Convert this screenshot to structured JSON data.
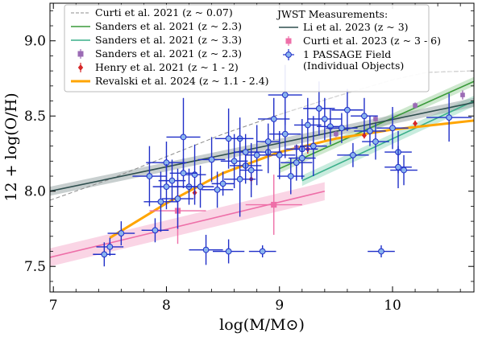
{
  "chart_data": {
    "type": "scatter",
    "xlabel": "log(M/M⊙)",
    "ylabel": "12 + log(O/H)",
    "xlim": [
      6.97,
      10.72
    ],
    "ylim": [
      7.33,
      9.25
    ],
    "xticks": [
      7,
      8,
      9,
      10
    ],
    "yticks": [
      7.5,
      8.0,
      8.5,
      9.0
    ],
    "grid": false,
    "legend_placement": "top",
    "legend_header": "JWST Measurements:",
    "colors": {
      "curti2021": "#8c8c8c",
      "sanders_z23": "#3a9a3a",
      "sanders_z33": "#3aaf8a",
      "sanders_sq": "#9b6bb5",
      "henry": "#d62728",
      "revalski": "#ffa500",
      "li": "#2f4f4f",
      "curti2023": "#ee6fa8",
      "passage": "#1f2ec8",
      "passage_fill": "#8ab4ee"
    },
    "series": [
      {
        "name": "Curti et al. 2021 (z ~ 0.07)",
        "kind": "line",
        "style": "dashed",
        "x": [
          6.97,
          7.5,
          8.0,
          8.5,
          9.0,
          9.5,
          10.0,
          10.3,
          10.72
        ],
        "y": [
          7.94,
          8.08,
          8.23,
          8.38,
          8.51,
          8.63,
          8.74,
          8.79,
          8.8
        ]
      },
      {
        "name": "Curti et al. 2021 (z ~ 0.07)",
        "kind": "line",
        "style": "faint",
        "x": [
          9.0,
          9.5,
          10.0,
          10.3,
          10.72
        ],
        "y": [
          8.51,
          8.63,
          8.74,
          8.79,
          8.8
        ]
      },
      {
        "name": "Sanders et al. 2021 (z ~ 2.3)",
        "kind": "band",
        "x": [
          9.0,
          10.72
        ],
        "y": [
          8.15,
          8.73
        ],
        "halfwidth": 0.03
      },
      {
        "name": "Sanders et al. 2021 (z ~ 3.3)",
        "kind": "band",
        "x": [
          9.2,
          10.72
        ],
        "y": [
          8.07,
          8.6
        ],
        "halfwidth": 0.035
      },
      {
        "name": "Sanders et al. 2021 (z ~ 2.3)",
        "kind": "errpoints",
        "marker": "square",
        "x": [
          9.15,
          9.5,
          9.85,
          10.2,
          10.62
        ],
        "y": [
          8.29,
          8.38,
          8.48,
          8.57,
          8.64
        ],
        "yerr": [
          0.02,
          0.02,
          0.02,
          0.02,
          0.03
        ]
      },
      {
        "name": "Henry et al. 2021 (z ~ 1-2)",
        "kind": "errpoints",
        "marker": "diamond",
        "x": [
          8.25,
          8.75,
          9.25,
          9.75,
          10.2
        ],
        "y": [
          7.99,
          8.08,
          8.28,
          8.37,
          8.45
        ],
        "yerr": [
          0.04,
          0.04,
          0.03,
          0.02,
          0.02
        ]
      },
      {
        "name": "Revalski et al. 2024 (z ~ 1.1-2.4)",
        "kind": "line",
        "x": [
          7.5,
          8.0,
          8.5,
          9.0,
          9.5,
          10.0,
          10.72
        ],
        "y": [
          7.69,
          7.92,
          8.12,
          8.26,
          8.35,
          8.41,
          8.47
        ]
      },
      {
        "name": "Li et al. 2023 (z ~ 3)",
        "kind": "band",
        "x": [
          6.97,
          10.72
        ],
        "y": [
          8.0,
          8.59
        ],
        "halfwidth": 0.03
      },
      {
        "name": "Curti et al. 2023 (z ~ 3-6)",
        "kind": "band",
        "x": [
          6.97,
          9.4
        ],
        "y": [
          7.56,
          8.0
        ],
        "halfwidth": 0.06
      },
      {
        "name": "Curti et al. 2023 (z ~ 3-6)",
        "kind": "errpoints",
        "marker": "square",
        "x": [
          8.1,
          8.95
        ],
        "y": [
          7.87,
          7.91
        ],
        "xerr": [
          0.25,
          0.25
        ],
        "yerr": [
          0.22,
          0.2
        ]
      },
      {
        "name": "1 PASSAGE Field (Individual Objects)",
        "kind": "errpoints",
        "marker": "circle",
        "x": [
          7.45,
          7.5,
          7.6,
          7.85,
          7.95,
          8.0,
          8.05,
          8.1,
          8.15,
          8.2,
          8.25,
          8.35,
          8.45,
          8.55,
          8.6,
          8.65,
          8.7,
          8.75,
          8.8,
          8.85,
          8.9,
          8.95,
          9.0,
          9.05,
          9.1,
          9.15,
          9.2,
          9.25,
          9.3,
          9.35,
          9.45,
          9.55,
          9.65,
          9.75,
          9.8,
          9.9,
          10.0,
          10.05,
          10.1,
          10.5,
          7.9,
          8.0,
          8.3,
          8.55,
          8.65,
          9.05,
          9.4,
          9.85,
          8.15,
          8.4,
          8.7,
          8.9,
          9.6,
          10.05,
          8.5,
          9.2
        ],
        "y": [
          7.58,
          7.63,
          7.72,
          8.1,
          7.93,
          8.19,
          8.07,
          7.95,
          8.36,
          8.03,
          8.11,
          7.61,
          8.01,
          7.6,
          8.2,
          8.35,
          8.17,
          8.14,
          8.24,
          7.6,
          8.26,
          8.48,
          8.24,
          8.38,
          8.1,
          8.19,
          8.28,
          8.44,
          8.3,
          8.55,
          8.43,
          8.42,
          8.24,
          8.5,
          8.4,
          7.6,
          8.42,
          8.26,
          8.14,
          8.49,
          7.74,
          8.03,
          8.03,
          8.35,
          8.08,
          8.64,
          8.48,
          8.33,
          8.12,
          8.21,
          8.26,
          8.33,
          8.54,
          8.16,
          8.05,
          8.22
        ],
        "xerr": [
          0.1,
          0.12,
          0.12,
          0.15,
          0.15,
          0.18,
          0.12,
          0.14,
          0.15,
          0.14,
          0.1,
          0.15,
          0.14,
          0.14,
          0.12,
          0.12,
          0.14,
          0.1,
          0.1,
          0.12,
          0.12,
          0.14,
          0.14,
          0.14,
          0.12,
          0.14,
          0.14,
          0.12,
          0.12,
          0.14,
          0.12,
          0.14,
          0.14,
          0.12,
          0.14,
          0.12,
          0.14,
          0.12,
          0.12,
          0.2,
          0.12,
          0.12,
          0.12,
          0.12,
          0.14,
          0.15,
          0.15,
          0.12,
          0.12,
          0.12,
          0.1,
          0.1,
          0.14,
          0.12,
          0.1,
          0.12
        ],
        "yerr": [
          0.08,
          0.06,
          0.08,
          0.2,
          0.2,
          0.14,
          0.14,
          0.2,
          0.26,
          0.12,
          0.2,
          0.1,
          0.12,
          0.08,
          0.18,
          0.14,
          0.12,
          0.18,
          0.2,
          0.04,
          0.14,
          0.14,
          0.16,
          0.16,
          0.12,
          0.12,
          0.2,
          0.18,
          0.2,
          0.18,
          0.12,
          0.1,
          0.08,
          0.12,
          0.1,
          0.04,
          0.14,
          0.14,
          0.1,
          0.16,
          0.08,
          0.15,
          0.14,
          0.2,
          0.25,
          0.2,
          0.14,
          0.12,
          0.1,
          0.15,
          0.12,
          0.12,
          0.14,
          0.14,
          0.08,
          0.14
        ]
      }
    ],
    "legend": [
      {
        "label": "Curti et al. 2021 (z ~ 0.07)",
        "marker": "dashed-line",
        "color": "#8c8c8c",
        "col": 0
      },
      {
        "label": "Sanders et al. 2021 (z ~ 2.3)",
        "marker": "line",
        "color": "#3a9a3a",
        "col": 0
      },
      {
        "label": "Sanders et al. 2021 (z ~ 3.3)",
        "marker": "line",
        "color": "#3aaf8a",
        "col": 0
      },
      {
        "label": "Sanders et al. 2021 (z ~ 2.3)",
        "marker": "square-err",
        "color": "#9b6bb5",
        "col": 0
      },
      {
        "label": "Henry et al. 2021 (z ~ 1 - 2)",
        "marker": "diamond-err",
        "color": "#d62728",
        "col": 0
      },
      {
        "label": "Revalski et al. 2024 (z ~ 1.1 - 2.4)",
        "marker": "thick-line",
        "color": "#ffa500",
        "col": 0
      },
      {
        "label": "Li et al. 2023 (z ~ 3)",
        "marker": "line",
        "color": "#2f4f4f",
        "col": 1
      },
      {
        "label": "Curti et al. 2023 (z ~ 3 - 6)",
        "marker": "square-err",
        "color": "#ee6fa8",
        "col": 1
      },
      {
        "label": "1 PASSAGE Field",
        "marker": "circle-err",
        "color": "#1f2ec8",
        "col": 1
      },
      {
        "label": "(Individual Objects)",
        "marker": "none",
        "color": "#000000",
        "col": 1
      }
    ]
  }
}
